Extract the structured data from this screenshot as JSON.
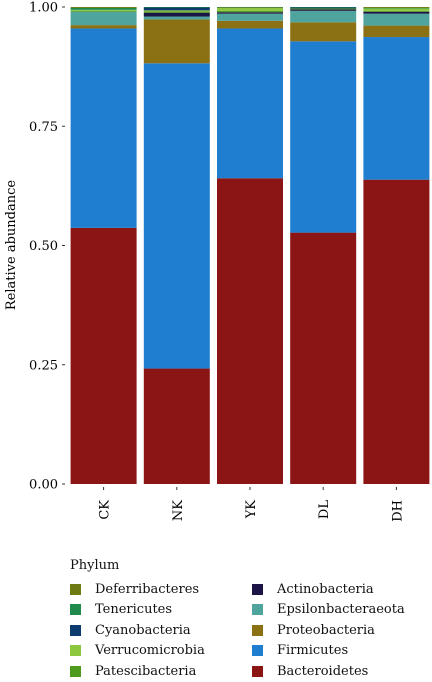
{
  "chart_data": {
    "type": "bar",
    "stacked": true,
    "ylabel": "Relative abundance",
    "ylim": [
      0,
      1
    ],
    "yticks": [
      "0.00",
      "0.25",
      "0.50",
      "0.75",
      "1.00"
    ],
    "categories": [
      "CK",
      "NK",
      "YK",
      "DL",
      "DH"
    ],
    "series": [
      {
        "name": "Bacteroidetes",
        "color": "#8B1515",
        "values": [
          0.537,
          0.242,
          0.641,
          0.527,
          0.638
        ]
      },
      {
        "name": "Firmicutes",
        "color": "#1F7ED0",
        "values": [
          0.418,
          0.64,
          0.314,
          0.401,
          0.299
        ]
      },
      {
        "name": "Proteobacteria",
        "color": "#8B7014",
        "values": [
          0.007,
          0.092,
          0.016,
          0.04,
          0.024
        ]
      },
      {
        "name": "Epsilonbacteraeota",
        "color": "#4FA59D",
        "values": [
          0.028,
          0.006,
          0.015,
          0.024,
          0.025
        ]
      },
      {
        "name": "Actinobacteria",
        "color": "#1C1446",
        "values": [
          0.0,
          0.008,
          0.003,
          0.003,
          0.004
        ]
      },
      {
        "name": "Patescibacteria",
        "color": "#4D9A1E",
        "values": [
          0.002,
          0.003,
          0.003,
          0.002,
          0.002
        ]
      },
      {
        "name": "Verrucomicrobia",
        "color": "#8DC63F",
        "values": [
          0.002,
          0.002,
          0.006,
          0.0,
          0.005
        ]
      },
      {
        "name": "Cyanobacteria",
        "color": "#0D3B6E",
        "values": [
          0.0,
          0.006,
          0.0,
          0.002,
          0.0
        ]
      },
      {
        "name": "Tenericutes",
        "color": "#1F8A4C",
        "values": [
          0.004,
          0.001,
          0.001,
          0.001,
          0.001
        ]
      },
      {
        "name": "Deferribacteres",
        "color": "#6E7A12",
        "values": [
          0.002,
          0.0,
          0.001,
          0.0,
          0.002
        ]
      }
    ],
    "legend": {
      "title": "Phylum",
      "position": "bottom",
      "order": [
        "Deferribacteres",
        "Actinobacteria",
        "Tenericutes",
        "Epsilonbacteraeota",
        "Cyanobacteria",
        "Proteobacteria",
        "Verrucomicrobia",
        "Firmicutes",
        "Patescibacteria",
        "Bacteroidetes"
      ]
    }
  }
}
